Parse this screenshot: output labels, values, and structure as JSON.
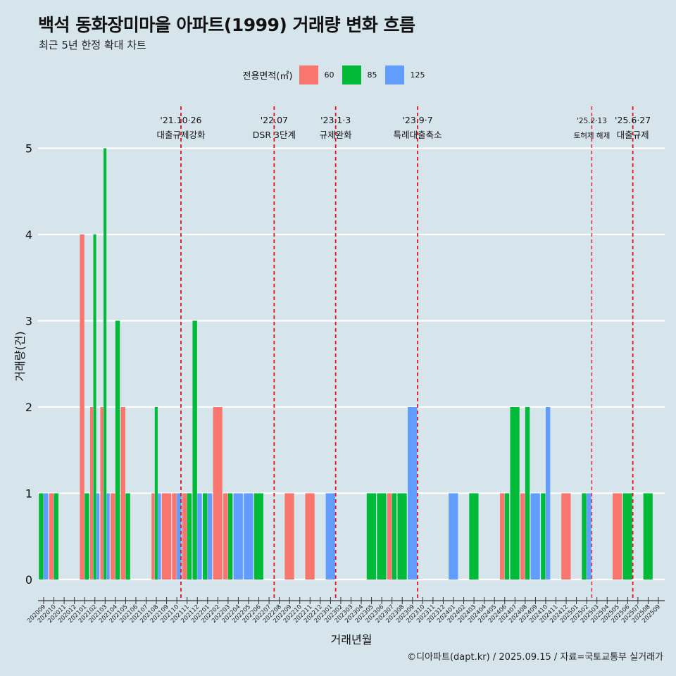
{
  "title": "백석 동화장미마을 아파트(1999) 거래량 변화 흐름",
  "subtitle": "최근 5년 한정 확대 차트",
  "caption": "©디아파트(dapt.kr) / 2025.09.15 / 자료=국토교통부 실거래가",
  "legend": {
    "title": "전용면적(㎡)"
  },
  "chart_data": {
    "type": "bar",
    "xlabel": "거래년월",
    "ylabel": "거래량(건)",
    "ylim": [
      0,
      5
    ],
    "yticks": [
      0,
      1,
      2,
      3,
      4,
      5
    ],
    "grid": "horizontal",
    "legend_position": "top",
    "colors": {
      "60": "#F8766D",
      "85": "#00BA38",
      "125": "#619CFF"
    },
    "months": [
      "202009",
      "202010",
      "202011",
      "202012",
      "202101",
      "202102",
      "202103",
      "202104",
      "202105",
      "202106",
      "202107",
      "202108",
      "202109",
      "202110",
      "202111",
      "202112",
      "202201",
      "202202",
      "202203",
      "202204",
      "202205",
      "202206",
      "202207",
      "202208",
      "202209",
      "202210",
      "202211",
      "202212",
      "202301",
      "202302",
      "202303",
      "202304",
      "202305",
      "202306",
      "202307",
      "202308",
      "202309",
      "202310",
      "202311",
      "202312",
      "202401",
      "202402",
      "202403",
      "202404",
      "202405",
      "202406",
      "202407",
      "202408",
      "202409",
      "202410",
      "202411",
      "202412",
      "202501",
      "202502",
      "202503",
      "202504",
      "202505",
      "202506",
      "202507",
      "202508",
      "202509"
    ],
    "series": [
      {
        "name": "60",
        "values": [
          0,
          1,
          0,
          0,
          4,
          2,
          2,
          1,
          2,
          0,
          0,
          1,
          1,
          1,
          1,
          0,
          0,
          2,
          1,
          0,
          0,
          0,
          0,
          0,
          1,
          0,
          1,
          0,
          0,
          0,
          0,
          0,
          0,
          0,
          1,
          0,
          0,
          0,
          0,
          0,
          0,
          0,
          0,
          0,
          0,
          1,
          0,
          1,
          0,
          0,
          0,
          1,
          0,
          0,
          0,
          0,
          1,
          0,
          0,
          0,
          0
        ]
      },
      {
        "name": "85",
        "values": [
          1,
          1,
          0,
          0,
          1,
          4,
          5,
          3,
          1,
          0,
          0,
          2,
          0,
          0,
          1,
          3,
          1,
          0,
          1,
          0,
          0,
          1,
          0,
          0,
          0,
          0,
          0,
          0,
          0,
          0,
          0,
          0,
          1,
          1,
          1,
          1,
          0,
          0,
          0,
          0,
          0,
          0,
          1,
          0,
          0,
          1,
          2,
          2,
          0,
          1,
          0,
          0,
          0,
          1,
          0,
          0,
          0,
          1,
          0,
          1,
          0
        ]
      },
      {
        "name": "125",
        "values": [
          1,
          0,
          0,
          0,
          0,
          1,
          1,
          0,
          0,
          0,
          0,
          1,
          0,
          1,
          0,
          1,
          1,
          0,
          0,
          1,
          1,
          0,
          0,
          0,
          0,
          0,
          0,
          0,
          1,
          0,
          0,
          0,
          0,
          0,
          0,
          0,
          2,
          0,
          0,
          0,
          1,
          0,
          0,
          0,
          0,
          0,
          0,
          0,
          1,
          2,
          0,
          0,
          0,
          1,
          0,
          0,
          0,
          0,
          0,
          0,
          0
        ]
      }
    ],
    "annotations": [
      {
        "month_index": 13.4,
        "date": "'21.10·26",
        "label": "대출규제강화",
        "small": false
      },
      {
        "month_index": 22.5,
        "date": "'22.07",
        "label": "DSR 3단계",
        "small": false
      },
      {
        "month_index": 28.5,
        "date": "'23.1·3",
        "label": "규제완화",
        "small": false
      },
      {
        "month_index": 36.5,
        "date": "'23.9·7",
        "label": "특례대출축소",
        "small": false
      },
      {
        "month_index": 53.5,
        "date": "'25.2·13",
        "label": "토허제 해제",
        "small": true
      },
      {
        "month_index": 57.5,
        "date": "'25.6·27",
        "label": "대출규제",
        "small": false
      }
    ]
  }
}
